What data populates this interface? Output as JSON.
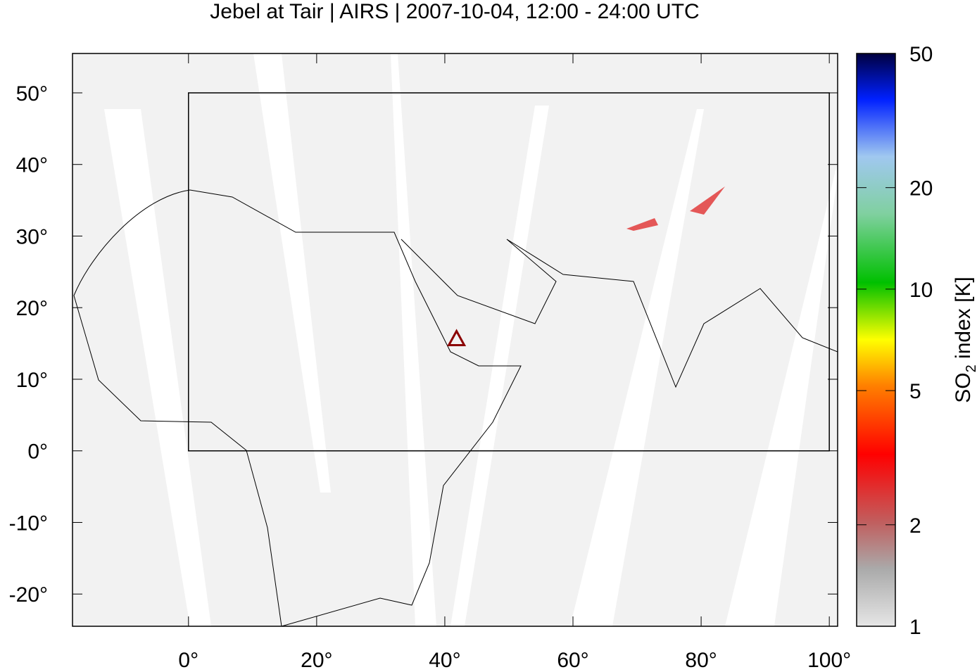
{
  "chart_data": {
    "type": "map",
    "title": "Jebel at Tair | AIRS | 2007-10-04, 12:00 - 24:00 UTC",
    "xlim": [
      -18.1,
      101.3
    ],
    "ylim": [
      -24.5,
      55.5
    ],
    "xticks": [
      {
        "value": 0,
        "label": "0°"
      },
      {
        "value": 20,
        "label": "20°"
      },
      {
        "value": 40,
        "label": "40°"
      },
      {
        "value": 60,
        "label": "60°"
      },
      {
        "value": 80,
        "label": "80°"
      },
      {
        "value": 100,
        "label": "100°"
      }
    ],
    "yticks": [
      {
        "value": -20,
        "label": "-20°"
      },
      {
        "value": -10,
        "label": "-10°"
      },
      {
        "value": 0,
        "label": "0°"
      },
      {
        "value": 10,
        "label": "10°"
      },
      {
        "value": 20,
        "label": "20°"
      },
      {
        "value": 30,
        "label": "30°"
      },
      {
        "value": 40,
        "label": "40°"
      },
      {
        "value": 50,
        "label": "50°"
      }
    ],
    "box": {
      "lon": [
        0,
        100
      ],
      "lat": [
        0,
        50
      ]
    },
    "volcano": {
      "lon": 41.83,
      "lat": 15.55,
      "color": "#8b0000"
    },
    "colorbar": {
      "log": true,
      "lim": [
        1,
        50
      ],
      "ticks": [
        1,
        2,
        5,
        10,
        20,
        50
      ],
      "label_main": "SO",
      "label_sub": "2",
      "label_rest": " index [K]"
    }
  }
}
